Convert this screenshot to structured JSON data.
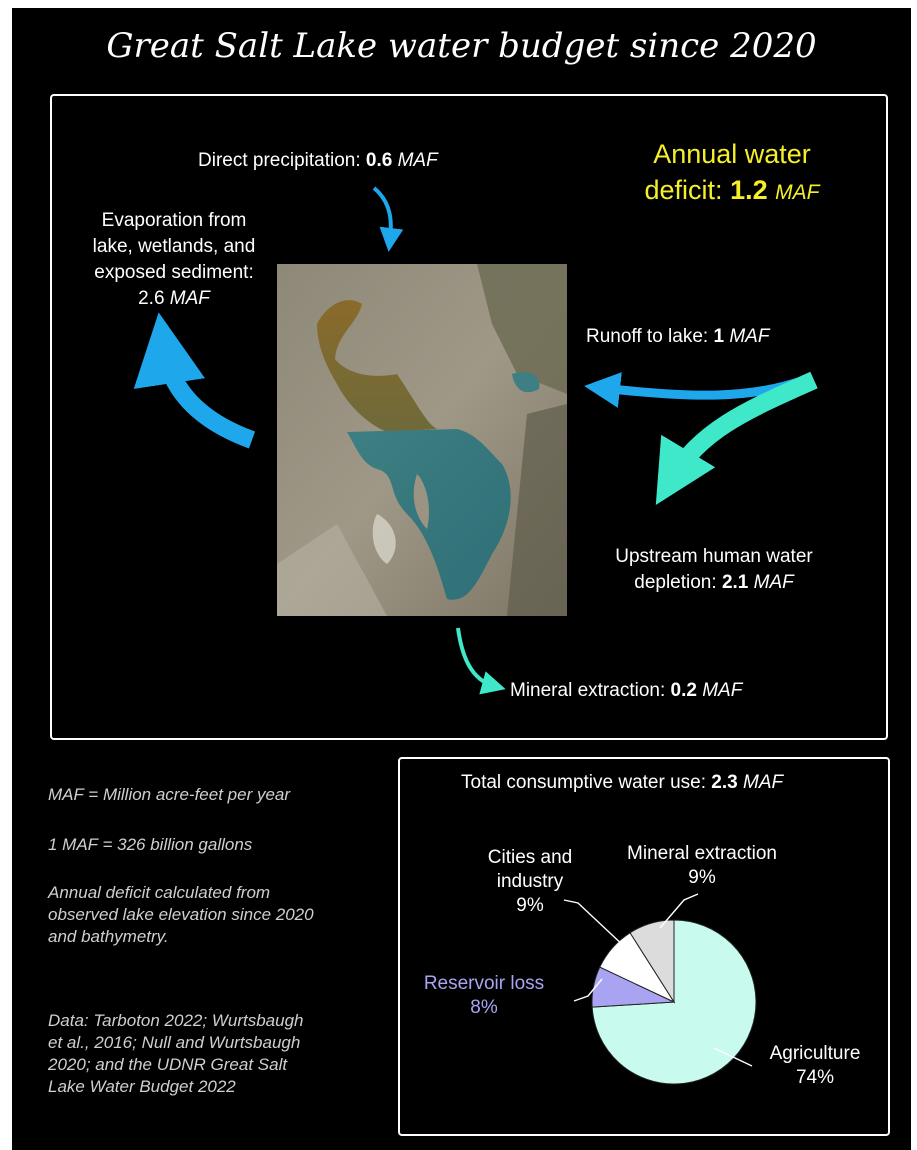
{
  "title": "Great Salt Lake water budget since 2020",
  "colors": {
    "background": "#000000",
    "deficit_text": "#f5ef2a",
    "inflow_arrow": "#1ea7ea",
    "depletion_arrow": "#3ee8c8",
    "reservoir_text": "#a8a4f2",
    "pie_agriculture": "#c8fbee",
    "pie_reservoir": "#a8a4f2",
    "pie_cities": "#ffffff",
    "pie_mineral": "#dcdcdc"
  },
  "budget": {
    "unit": "MAF",
    "deficit": {
      "label": "Annual water",
      "label2": "deficit:",
      "value": "1.2"
    },
    "precipitation": {
      "label": "Direct precipitation:",
      "value": "0.6"
    },
    "evaporation": {
      "line1": "Evaporation from",
      "line2": "lake, wetlands, and",
      "line3": "exposed sediment:",
      "value": "2.6"
    },
    "runoff": {
      "label": "Runoff to lake:",
      "value": "1"
    },
    "depletion": {
      "line1": "Upstream human water",
      "line2": "depletion:",
      "value": "2.1"
    },
    "mineral": {
      "label": "Mineral extraction:",
      "value": "0.2"
    }
  },
  "notes": {
    "maf_def": "MAF = Million acre-feet per year",
    "gallons": "1 MAF = 326 billion gallons",
    "deficit_1": "Annual deficit calculated from",
    "deficit_2": "observed lake elevation since 2020",
    "deficit_3": "and bathymetry.",
    "data_1": "Data: Tarboton 2022; Wurtsbaugh",
    "data_2": "et al., 2016; Null and Wurtsbaugh",
    "data_3": "2020; and the UDNR Great Salt",
    "data_4": "Lake Water Budget 2022"
  },
  "chart_data": {
    "type": "pie",
    "title": "Total consumptive water use:",
    "title_value": "2.3",
    "title_unit": "MAF",
    "slices": [
      {
        "label": "Agriculture",
        "value": 74,
        "value_text": "74%",
        "color": "#c8fbee"
      },
      {
        "label": "Reservoir loss",
        "value": 8,
        "value_text": "8%",
        "color": "#a8a4f2"
      },
      {
        "label": "Cities and industry",
        "label_line1": "Cities and",
        "label_line2": "industry",
        "value": 9,
        "value_text": "9%",
        "color": "#ffffff"
      },
      {
        "label": "Mineral extraction",
        "value": 9,
        "value_text": "9%",
        "color": "#dcdcdc"
      }
    ],
    "start_angle_deg": 0,
    "direction": "clockwise"
  }
}
